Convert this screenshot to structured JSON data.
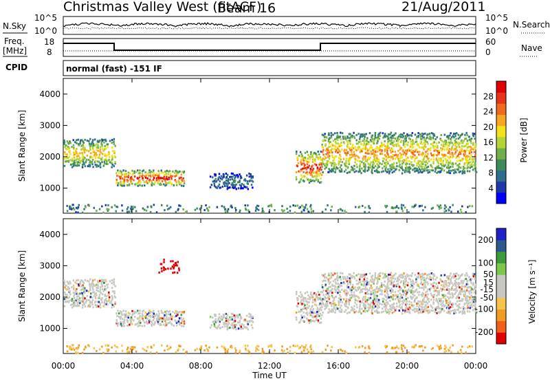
{
  "header": {
    "radar": "Christmas Valley West (fitACF)",
    "beam": "Beam 16",
    "date": "21/Aug/2011"
  },
  "strip_labels": {
    "nsky": "N.Sky",
    "nsearch": "N.Search",
    "freq": "Freq.",
    "freq_unit": "[MHz]",
    "nave": "Nave",
    "cpid": "CPID",
    "cpid_text": "normal (fast) -151 IF",
    "noise_ticks_left": [
      "10^5",
      "10^0"
    ],
    "noise_ticks_right": [
      "10^5",
      "10^0"
    ],
    "freq_ticks": [
      "18",
      "8"
    ],
    "nave_ticks": [
      "60",
      "0"
    ]
  },
  "colors": {
    "power_scale": [
      "#0000ff",
      "#1c3aa8",
      "#2e6e8c",
      "#3f8a5a",
      "#6fb04a",
      "#b3d336",
      "#f3e21a",
      "#f7a623",
      "#f26a1c",
      "#e63418",
      "#e00000"
    ],
    "velocity_scale": [
      "#e00000",
      "#f06018",
      "#f29a22",
      "#f5c44a",
      "#c8c8c0",
      "#c8c8c0",
      "#7bc94a",
      "#3d9a3d",
      "#2a5b8c",
      "#2020c8"
    ]
  },
  "chart_data": [
    {
      "type": "heatmap",
      "title": "Power",
      "ylabel": "Slant Range [km]",
      "ylim": [
        200,
        4500
      ],
      "yticks": [
        "4000",
        "3000",
        "2000",
        "1000"
      ],
      "colorbar_label": "Power [dB]",
      "colorbar_ticks": [
        "28",
        "24",
        "20",
        "16",
        "12",
        "8",
        "4"
      ],
      "colorbar_range": [
        0,
        32
      ],
      "features": [
        {
          "t": [
            0,
            3
          ],
          "r": [
            1700,
            2600
          ],
          "peak_db": 22
        },
        {
          "t": [
            3,
            7
          ],
          "r": [
            1100,
            1600
          ],
          "peak_db": 30
        },
        {
          "t": [
            8.5,
            11
          ],
          "r": [
            1000,
            1500
          ],
          "peak_db": 9
        },
        {
          "t": [
            13.5,
            15
          ],
          "r": [
            1200,
            2200
          ],
          "peak_db": 30
        },
        {
          "t": [
            15,
            24
          ],
          "r": [
            1500,
            2800
          ],
          "peak_db": 24
        }
      ]
    },
    {
      "type": "heatmap",
      "title": "Velocity",
      "ylabel": "Slant Range [km]",
      "ylim": [
        200,
        4500
      ],
      "yticks": [
        "4000",
        "3000",
        "2000",
        "1000"
      ],
      "colorbar_label": "Velocity [m s⁻¹]",
      "colorbar_ticks": [
        "200",
        "100",
        "50",
        "15",
        "-15",
        "-50",
        "-100",
        "-200"
      ],
      "colorbar_range": [
        -250,
        250
      ],
      "xlabel": "Time UT",
      "xticks": [
        "00:00",
        "04:00",
        "08:00",
        "12:00",
        "16:00",
        "20:00",
        "00:00"
      ],
      "xlim_hours": [
        0,
        24
      ]
    }
  ]
}
